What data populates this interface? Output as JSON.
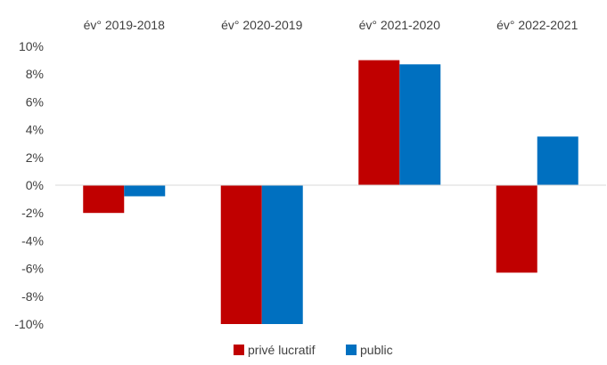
{
  "chart_data": {
    "type": "bar",
    "categories": [
      "év° 2019-2018",
      "év° 2020-2019",
      "év° 2021-2020",
      "év° 2022-2021"
    ],
    "series": [
      {
        "name": "privé lucratif",
        "color": "#C00000",
        "values": [
          -2.0,
          -10.0,
          9.0,
          -6.3
        ]
      },
      {
        "name": "public",
        "color": "#0070C0",
        "values": [
          -0.8,
          -10.0,
          8.7,
          3.5
        ]
      }
    ],
    "ylim": [
      -10,
      10
    ],
    "yticks": [
      10,
      8,
      6,
      4,
      2,
      0,
      -2,
      -4,
      -6,
      -8,
      -10
    ],
    "ytick_labels": [
      "10%",
      "8%",
      "6%",
      "4%",
      "2%",
      "0%",
      "-2%",
      "-4%",
      "-6%",
      "-8%",
      "-10%"
    ],
    "category_label_position": "top",
    "legend_position": "bottom-center",
    "grid": false,
    "title": "",
    "xlabel": "",
    "ylabel": ""
  }
}
